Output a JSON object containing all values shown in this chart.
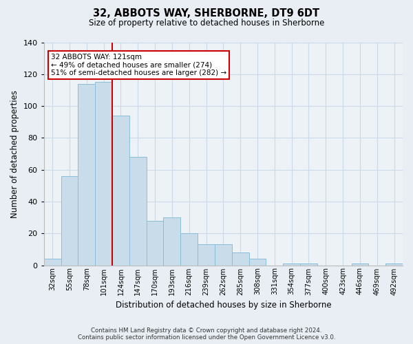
{
  "title": "32, ABBOTS WAY, SHERBORNE, DT9 6DT",
  "subtitle": "Size of property relative to detached houses in Sherborne",
  "xlabel": "Distribution of detached houses by size in Sherborne",
  "ylabel": "Number of detached properties",
  "bar_color": "#c8dcea",
  "bar_edge_color": "#8bbdd9",
  "categories": [
    "32sqm",
    "55sqm",
    "78sqm",
    "101sqm",
    "124sqm",
    "147sqm",
    "170sqm",
    "193sqm",
    "216sqm",
    "239sqm",
    "262sqm",
    "285sqm",
    "308sqm",
    "331sqm",
    "354sqm",
    "377sqm",
    "400sqm",
    "423sqm",
    "446sqm",
    "469sqm",
    "492sqm"
  ],
  "values": [
    4,
    56,
    114,
    115,
    94,
    68,
    28,
    30,
    20,
    13,
    13,
    8,
    4,
    0,
    1,
    1,
    0,
    0,
    1,
    0,
    1
  ],
  "ylim": [
    0,
    140
  ],
  "yticks": [
    0,
    20,
    40,
    60,
    80,
    100,
    120,
    140
  ],
  "marker_bin_index": 4,
  "marker_label": "32 ABBOTS WAY: 121sqm",
  "annotation_line1": "← 49% of detached houses are smaller (274)",
  "annotation_line2": "51% of semi-detached houses are larger (282) →",
  "annotation_box_color": "#ffffff",
  "annotation_box_edge": "#cc0000",
  "grid_color": "#ccd9e6",
  "bg_color": "#e8eef4",
  "plot_bg_color": "#edf2f7",
  "footer_line1": "Contains HM Land Registry data © Crown copyright and database right 2024.",
  "footer_line2": "Contains public sector information licensed under the Open Government Licence v3.0.",
  "marker_line_color": "#cc0000"
}
